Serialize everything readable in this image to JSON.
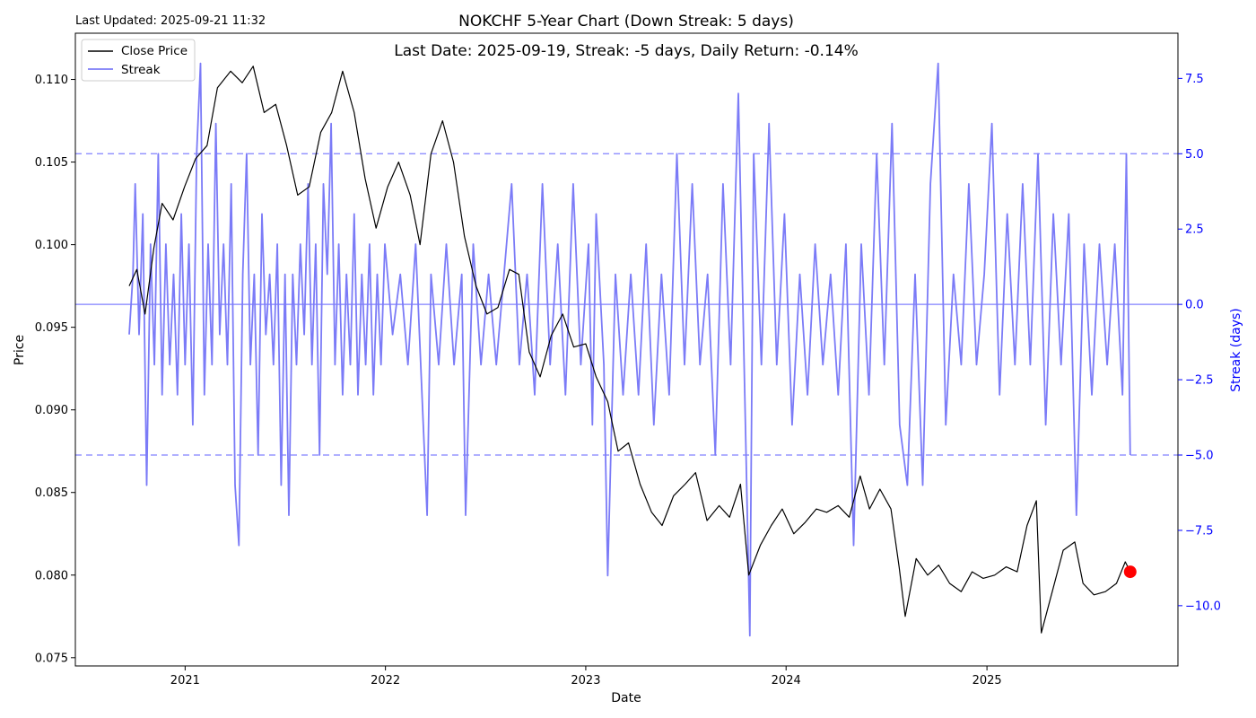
{
  "header": {
    "last_updated": "Last Updated: 2025-09-21 11:32"
  },
  "chart_data": {
    "type": "line",
    "title": "NOKCHF 5-Year Chart (Down Streak: 5 days)",
    "annotation": "Last Date: 2025-09-19, Streak: -5 days, Daily Return: -0.14%",
    "xlabel": "Date",
    "ylabel": "Price",
    "y2label": "Streak (days)",
    "xlim": [
      "2020-06-15",
      "2025-12-15"
    ],
    "ylim": [
      0.0745,
      0.1128
    ],
    "y2lim": [
      -12.0,
      9.0
    ],
    "x_ticks": [
      "2021-01-01",
      "2022-01-01",
      "2023-01-01",
      "2024-01-01",
      "2025-01-01"
    ],
    "x_tick_labels": [
      "2021",
      "2022",
      "2023",
      "2024",
      "2025"
    ],
    "y_ticks": [
      "0.075",
      "0.080",
      "0.085",
      "0.090",
      "0.095",
      "0.100",
      "0.105",
      "0.110"
    ],
    "y2_ticks": [
      "−10.0",
      "−7.5",
      "−5.0",
      "−2.5",
      "0.0",
      "2.5",
      "5.0",
      "7.5"
    ],
    "grid": false,
    "legend_position": "top-left",
    "legend": [
      "Close Price",
      "Streak"
    ],
    "colors": {
      "price": "#000000",
      "streak": "#7b7bf7",
      "right_axis": "#0000ff",
      "threshold_line": "#8080ff",
      "last_point": "#ff0000"
    },
    "reference_lines": {
      "streak_upper": 5,
      "streak_zero": 0,
      "streak_lower": -5
    },
    "last_point": {
      "date": "2025-09-19",
      "price": 0.0802
    },
    "series": [
      {
        "name": "Close Price",
        "axis": "left",
        "points": [
          [
            "2020-09-21",
            0.0975
          ],
          [
            "2020-10-05",
            0.0985
          ],
          [
            "2020-10-20",
            0.0958
          ],
          [
            "2020-11-05",
            0.0998
          ],
          [
            "2020-11-20",
            0.1025
          ],
          [
            "2020-12-10",
            0.1015
          ],
          [
            "2020-12-31",
            0.1035
          ],
          [
            "2021-01-20",
            0.1052
          ],
          [
            "2021-02-10",
            0.106
          ],
          [
            "2021-03-01",
            0.1095
          ],
          [
            "2021-03-25",
            0.1105
          ],
          [
            "2021-04-15",
            0.1098
          ],
          [
            "2021-05-05",
            0.1108
          ],
          [
            "2021-05-25",
            0.108
          ],
          [
            "2021-06-15",
            0.1085
          ],
          [
            "2021-07-05",
            0.106
          ],
          [
            "2021-07-25",
            0.103
          ],
          [
            "2021-08-15",
            0.1035
          ],
          [
            "2021-09-05",
            0.1068
          ],
          [
            "2021-09-25",
            0.108
          ],
          [
            "2021-10-15",
            0.1105
          ],
          [
            "2021-11-05",
            0.108
          ],
          [
            "2021-11-25",
            0.104
          ],
          [
            "2021-12-15",
            0.101
          ],
          [
            "2022-01-05",
            0.1035
          ],
          [
            "2022-01-25",
            0.105
          ],
          [
            "2022-02-15",
            0.103
          ],
          [
            "2022-03-05",
            0.1
          ],
          [
            "2022-03-25",
            0.1055
          ],
          [
            "2022-04-15",
            0.1075
          ],
          [
            "2022-05-05",
            0.105
          ],
          [
            "2022-05-25",
            0.1005
          ],
          [
            "2022-06-15",
            0.0975
          ],
          [
            "2022-07-05",
            0.0958
          ],
          [
            "2022-07-25",
            0.0962
          ],
          [
            "2022-08-15",
            0.0985
          ],
          [
            "2022-09-01",
            0.0982
          ],
          [
            "2022-09-20",
            0.0935
          ],
          [
            "2022-10-10",
            0.092
          ],
          [
            "2022-10-30",
            0.0945
          ],
          [
            "2022-11-20",
            0.0958
          ],
          [
            "2022-12-10",
            0.0938
          ],
          [
            "2023-01-01",
            0.094
          ],
          [
            "2023-01-20",
            0.092
          ],
          [
            "2023-02-10",
            0.0905
          ],
          [
            "2023-03-01",
            0.0875
          ],
          [
            "2023-03-20",
            0.088
          ],
          [
            "2023-04-10",
            0.0855
          ],
          [
            "2023-05-01",
            0.0838
          ],
          [
            "2023-05-20",
            0.083
          ],
          [
            "2023-06-10",
            0.0848
          ],
          [
            "2023-07-01",
            0.0855
          ],
          [
            "2023-07-20",
            0.0862
          ],
          [
            "2023-08-10",
            0.0833
          ],
          [
            "2023-09-01",
            0.0842
          ],
          [
            "2023-09-20",
            0.0835
          ],
          [
            "2023-10-10",
            0.0855
          ],
          [
            "2023-10-25",
            0.08
          ],
          [
            "2023-11-15",
            0.0818
          ],
          [
            "2023-12-05",
            0.083
          ],
          [
            "2023-12-25",
            0.084
          ],
          [
            "2024-01-15",
            0.0825
          ],
          [
            "2024-02-05",
            0.0832
          ],
          [
            "2024-02-25",
            0.084
          ],
          [
            "2024-03-15",
            0.0838
          ],
          [
            "2024-04-05",
            0.0842
          ],
          [
            "2024-04-25",
            0.0835
          ],
          [
            "2024-05-15",
            0.086
          ],
          [
            "2024-06-01",
            0.084
          ],
          [
            "2024-06-20",
            0.0852
          ],
          [
            "2024-07-10",
            0.084
          ],
          [
            "2024-07-25",
            0.0805
          ],
          [
            "2024-08-05",
            0.0775
          ],
          [
            "2024-08-25",
            0.081
          ],
          [
            "2024-09-15",
            0.08
          ],
          [
            "2024-10-05",
            0.0806
          ],
          [
            "2024-10-25",
            0.0795
          ],
          [
            "2024-11-15",
            0.079
          ],
          [
            "2024-12-05",
            0.0802
          ],
          [
            "2024-12-25",
            0.0798
          ],
          [
            "2025-01-15",
            0.08
          ],
          [
            "2025-02-05",
            0.0805
          ],
          [
            "2025-02-25",
            0.0802
          ],
          [
            "2025-03-15",
            0.083
          ],
          [
            "2025-04-01",
            0.0845
          ],
          [
            "2025-04-10",
            0.0765
          ],
          [
            "2025-04-30",
            0.079
          ],
          [
            "2025-05-20",
            0.0815
          ],
          [
            "2025-06-10",
            0.082
          ],
          [
            "2025-06-25",
            0.0795
          ],
          [
            "2025-07-15",
            0.0788
          ],
          [
            "2025-08-05",
            0.079
          ],
          [
            "2025-08-25",
            0.0795
          ],
          [
            "2025-09-10",
            0.0808
          ],
          [
            "2025-09-19",
            0.0802
          ]
        ]
      },
      {
        "name": "Streak",
        "axis": "right",
        "points": [
          [
            "2020-09-21",
            -1
          ],
          [
            "2020-09-28",
            1
          ],
          [
            "2020-10-02",
            4
          ],
          [
            "2020-10-09",
            -1
          ],
          [
            "2020-10-16",
            3
          ],
          [
            "2020-10-23",
            -6
          ],
          [
            "2020-10-30",
            2
          ],
          [
            "2020-11-06",
            -2
          ],
          [
            "2020-11-13",
            5
          ],
          [
            "2020-11-20",
            -3
          ],
          [
            "2020-11-27",
            2
          ],
          [
            "2020-12-04",
            -2
          ],
          [
            "2020-12-11",
            1
          ],
          [
            "2020-12-18",
            -3
          ],
          [
            "2020-12-25",
            3
          ],
          [
            "2021-01-01",
            -2
          ],
          [
            "2021-01-08",
            2
          ],
          [
            "2021-01-15",
            -4
          ],
          [
            "2021-01-22",
            5
          ],
          [
            "2021-01-29",
            8
          ],
          [
            "2021-02-05",
            -3
          ],
          [
            "2021-02-12",
            2
          ],
          [
            "2021-02-19",
            -2
          ],
          [
            "2021-02-26",
            6
          ],
          [
            "2021-03-05",
            -1
          ],
          [
            "2021-03-12",
            2
          ],
          [
            "2021-03-19",
            -2
          ],
          [
            "2021-03-26",
            4
          ],
          [
            "2021-04-02",
            -6
          ],
          [
            "2021-04-09",
            -8
          ],
          [
            "2021-04-16",
            1
          ],
          [
            "2021-04-23",
            5
          ],
          [
            "2021-04-30",
            -2
          ],
          [
            "2021-05-07",
            1
          ],
          [
            "2021-05-14",
            -5
          ],
          [
            "2021-05-21",
            3
          ],
          [
            "2021-05-28",
            -1
          ],
          [
            "2021-06-04",
            1
          ],
          [
            "2021-06-11",
            -2
          ],
          [
            "2021-06-18",
            2
          ],
          [
            "2021-06-25",
            -6
          ],
          [
            "2021-07-02",
            1
          ],
          [
            "2021-07-09",
            -7
          ],
          [
            "2021-07-16",
            1
          ],
          [
            "2021-07-23",
            -2
          ],
          [
            "2021-07-30",
            2
          ],
          [
            "2021-08-06",
            -1
          ],
          [
            "2021-08-13",
            4
          ],
          [
            "2021-08-20",
            -2
          ],
          [
            "2021-08-27",
            2
          ],
          [
            "2021-09-03",
            -5
          ],
          [
            "2021-09-10",
            4
          ],
          [
            "2021-09-17",
            1
          ],
          [
            "2021-09-24",
            6
          ],
          [
            "2021-10-01",
            -2
          ],
          [
            "2021-10-08",
            2
          ],
          [
            "2021-10-15",
            -3
          ],
          [
            "2021-10-22",
            1
          ],
          [
            "2021-10-29",
            -2
          ],
          [
            "2021-11-05",
            3
          ],
          [
            "2021-11-12",
            -3
          ],
          [
            "2021-11-19",
            1
          ],
          [
            "2021-11-26",
            -2
          ],
          [
            "2021-12-03",
            2
          ],
          [
            "2021-12-10",
            -3
          ],
          [
            "2021-12-17",
            1
          ],
          [
            "2021-12-24",
            -2
          ],
          [
            "2021-12-31",
            2
          ],
          [
            "2022-01-14",
            -1
          ],
          [
            "2022-01-28",
            1
          ],
          [
            "2022-02-11",
            -2
          ],
          [
            "2022-02-25",
            2
          ],
          [
            "2022-03-11",
            -4
          ],
          [
            "2022-03-18",
            -7
          ],
          [
            "2022-03-25",
            1
          ],
          [
            "2022-04-08",
            -2
          ],
          [
            "2022-04-22",
            2
          ],
          [
            "2022-05-06",
            -2
          ],
          [
            "2022-05-20",
            1
          ],
          [
            "2022-05-27",
            -7
          ],
          [
            "2022-06-10",
            2
          ],
          [
            "2022-06-24",
            -2
          ],
          [
            "2022-07-08",
            1
          ],
          [
            "2022-07-22",
            -2
          ],
          [
            "2022-08-05",
            1
          ],
          [
            "2022-08-19",
            4
          ],
          [
            "2022-09-02",
            -2
          ],
          [
            "2022-09-16",
            1
          ],
          [
            "2022-09-30",
            -3
          ],
          [
            "2022-10-14",
            4
          ],
          [
            "2022-10-28",
            -2
          ],
          [
            "2022-11-11",
            2
          ],
          [
            "2022-11-25",
            -3
          ],
          [
            "2022-12-09",
            4
          ],
          [
            "2022-12-23",
            -2
          ],
          [
            "2023-01-06",
            2
          ],
          [
            "2023-01-13",
            -4
          ],
          [
            "2023-01-20",
            3
          ],
          [
            "2023-02-03",
            -2
          ],
          [
            "2023-02-10",
            -9
          ],
          [
            "2023-02-24",
            1
          ],
          [
            "2023-03-10",
            -3
          ],
          [
            "2023-03-24",
            1
          ],
          [
            "2023-04-07",
            -3
          ],
          [
            "2023-04-21",
            2
          ],
          [
            "2023-05-05",
            -4
          ],
          [
            "2023-05-19",
            1
          ],
          [
            "2023-06-02",
            -3
          ],
          [
            "2023-06-16",
            5
          ],
          [
            "2023-06-30",
            -2
          ],
          [
            "2023-07-14",
            4
          ],
          [
            "2023-07-28",
            -2
          ],
          [
            "2023-08-11",
            1
          ],
          [
            "2023-08-25",
            -5
          ],
          [
            "2023-09-08",
            4
          ],
          [
            "2023-09-22",
            -2
          ],
          [
            "2023-10-06",
            7
          ],
          [
            "2023-10-20",
            -5
          ],
          [
            "2023-10-27",
            -11
          ],
          [
            "2023-11-03",
            5
          ],
          [
            "2023-11-17",
            -2
          ],
          [
            "2023-12-01",
            6
          ],
          [
            "2023-12-15",
            -2
          ],
          [
            "2023-12-29",
            3
          ],
          [
            "2024-01-12",
            -4
          ],
          [
            "2024-01-26",
            1
          ],
          [
            "2024-02-09",
            -3
          ],
          [
            "2024-02-23",
            2
          ],
          [
            "2024-03-08",
            -2
          ],
          [
            "2024-03-22",
            1
          ],
          [
            "2024-04-05",
            -3
          ],
          [
            "2024-04-19",
            2
          ],
          [
            "2024-05-03",
            -8
          ],
          [
            "2024-05-17",
            2
          ],
          [
            "2024-05-31",
            -3
          ],
          [
            "2024-06-14",
            5
          ],
          [
            "2024-06-28",
            -2
          ],
          [
            "2024-07-12",
            6
          ],
          [
            "2024-07-26",
            -4
          ],
          [
            "2024-08-09",
            -6
          ],
          [
            "2024-08-23",
            1
          ],
          [
            "2024-09-06",
            -6
          ],
          [
            "2024-09-20",
            4
          ],
          [
            "2024-10-04",
            8
          ],
          [
            "2024-10-18",
            -4
          ],
          [
            "2024-11-01",
            1
          ],
          [
            "2024-11-15",
            -2
          ],
          [
            "2024-11-29",
            4
          ],
          [
            "2024-12-13",
            -2
          ],
          [
            "2024-12-27",
            1
          ],
          [
            "2025-01-10",
            6
          ],
          [
            "2025-01-24",
            -3
          ],
          [
            "2025-02-07",
            3
          ],
          [
            "2025-02-21",
            -2
          ],
          [
            "2025-03-07",
            4
          ],
          [
            "2025-03-21",
            -2
          ],
          [
            "2025-04-04",
            5
          ],
          [
            "2025-04-18",
            -4
          ],
          [
            "2025-05-02",
            3
          ],
          [
            "2025-05-16",
            -2
          ],
          [
            "2025-05-30",
            3
          ],
          [
            "2025-06-13",
            -7
          ],
          [
            "2025-06-27",
            2
          ],
          [
            "2025-07-11",
            -3
          ],
          [
            "2025-07-25",
            2
          ],
          [
            "2025-08-08",
            -2
          ],
          [
            "2025-08-22",
            2
          ],
          [
            "2025-09-05",
            -3
          ],
          [
            "2025-09-12",
            5
          ],
          [
            "2025-09-19",
            -5
          ]
        ]
      }
    ]
  }
}
